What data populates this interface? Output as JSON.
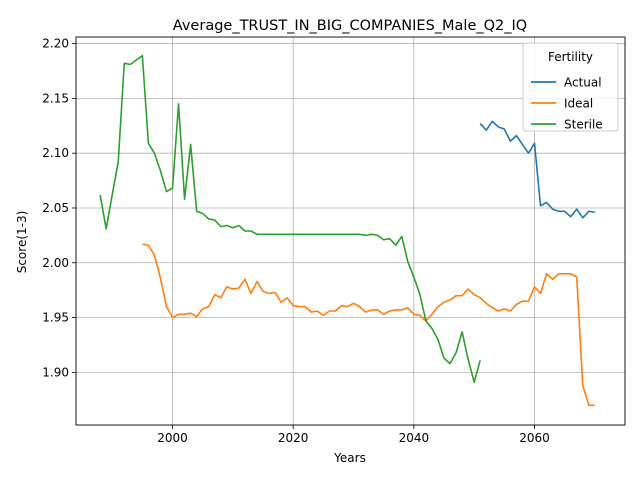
{
  "chart_data": {
    "type": "line",
    "title": "Average_TRUST_IN_BIG_COMPANIES_Male_Q2_IQ",
    "xlabel": "Years",
    "ylabel": "Score(1-3)",
    "xlim": [
      1984,
      2075
    ],
    "ylim": [
      1.852,
      2.206
    ],
    "xticks": [
      2000,
      2020,
      2040,
      2060
    ],
    "yticks": [
      1.9,
      1.95,
      2.0,
      2.05,
      2.1,
      2.15,
      2.2
    ],
    "ytick_labels": [
      "1.90",
      "1.95",
      "2.00",
      "2.05",
      "2.10",
      "2.15",
      "2.20"
    ],
    "grid": true,
    "legend": {
      "title": "Fertility",
      "placement": "top-right"
    },
    "series": [
      {
        "name": "Actual",
        "color": "#1f77b4",
        "x": [
          2051,
          2052,
          2053,
          2054,
          2055,
          2056,
          2057,
          2058,
          2059,
          2060,
          2061,
          2062,
          2063,
          2064,
          2065,
          2066,
          2067,
          2068,
          2069,
          2070
        ],
        "y": [
          2.127,
          2.121,
          2.129,
          2.124,
          2.122,
          2.111,
          2.116,
          2.108,
          2.1,
          2.109,
          2.052,
          2.055,
          2.049,
          2.047,
          2.047,
          2.042,
          2.049,
          2.041,
          2.047,
          2.046
        ]
      },
      {
        "name": "Ideal",
        "color": "#ff7f0e",
        "x": [
          1995,
          1996,
          1997,
          1998,
          1999,
          2000,
          2001,
          2002,
          2003,
          2004,
          2005,
          2006,
          2007,
          2008,
          2009,
          2010,
          2011,
          2012,
          2013,
          2014,
          2015,
          2016,
          2017,
          2018,
          2019,
          2020,
          2021,
          2022,
          2023,
          2024,
          2025,
          2026,
          2027,
          2028,
          2029,
          2030,
          2031,
          2032,
          2033,
          2034,
          2035,
          2036,
          2037,
          2038,
          2039,
          2040,
          2041,
          2042,
          2043,
          2044,
          2045,
          2046,
          2047,
          2048,
          2049,
          2050,
          2051,
          2052,
          2053,
          2054,
          2055,
          2056,
          2057,
          2058,
          2059,
          2060,
          2061,
          2062,
          2063,
          2064,
          2065,
          2066,
          2067,
          2068,
          2069,
          2070
        ],
        "y": [
          2.017,
          2.016,
          2.007,
          1.986,
          1.96,
          1.95,
          1.953,
          1.953,
          1.954,
          1.951,
          1.958,
          1.96,
          1.971,
          1.968,
          1.978,
          1.976,
          1.977,
          1.985,
          1.972,
          1.983,
          1.974,
          1.972,
          1.973,
          1.964,
          1.968,
          1.961,
          1.96,
          1.96,
          1.955,
          1.956,
          1.952,
          1.956,
          1.956,
          1.961,
          1.96,
          1.963,
          1.96,
          1.955,
          1.957,
          1.957,
          1.953,
          1.956,
          1.957,
          1.957,
          1.959,
          1.953,
          1.952,
          1.947,
          1.953,
          1.96,
          1.964,
          1.966,
          1.97,
          1.97,
          1.976,
          1.971,
          1.968,
          1.963,
          1.959,
          1.956,
          1.958,
          1.956,
          1.962,
          1.965,
          1.965,
          1.978,
          1.972,
          1.99,
          1.985,
          1.99,
          1.99,
          1.99,
          1.987,
          1.888,
          1.87,
          1.87
        ]
      },
      {
        "name": "Sterile",
        "color": "#2ca02c",
        "x": [
          1988,
          1989,
          1990,
          1991,
          1992,
          1993,
          1994,
          1995,
          1996,
          1997,
          1998,
          1999,
          2000,
          2001,
          2002,
          2003,
          2004,
          2005,
          2006,
          2007,
          2008,
          2009,
          2010,
          2011,
          2012,
          2013,
          2014,
          2015,
          2016,
          2017,
          2018,
          2019,
          2020,
          2021,
          2022,
          2023,
          2024,
          2025,
          2026,
          2027,
          2028,
          2029,
          2030,
          2031,
          2032,
          2033,
          2034,
          2035,
          2036,
          2037,
          2038,
          2039,
          2040,
          2041,
          2042,
          2043,
          2044,
          2045,
          2046,
          2047,
          2048,
          2049,
          2050,
          2051
        ],
        "y": [
          2.062,
          2.031,
          2.062,
          2.092,
          2.182,
          2.181,
          2.185,
          2.189,
          2.109,
          2.1,
          2.084,
          2.065,
          2.068,
          2.145,
          2.058,
          2.108,
          2.047,
          2.045,
          2.04,
          2.039,
          2.033,
          2.034,
          2.032,
          2.034,
          2.029,
          2.029,
          2.026,
          2.026,
          2.026,
          2.026,
          2.026,
          2.026,
          2.026,
          2.026,
          2.026,
          2.026,
          2.026,
          2.026,
          2.026,
          2.026,
          2.026,
          2.026,
          2.026,
          2.026,
          2.025,
          2.026,
          2.025,
          2.021,
          2.022,
          2.016,
          2.024,
          2.001,
          1.987,
          1.971,
          1.947,
          1.94,
          1.93,
          1.913,
          1.908,
          1.918,
          1.937,
          1.912,
          1.891,
          1.911
        ]
      }
    ]
  }
}
